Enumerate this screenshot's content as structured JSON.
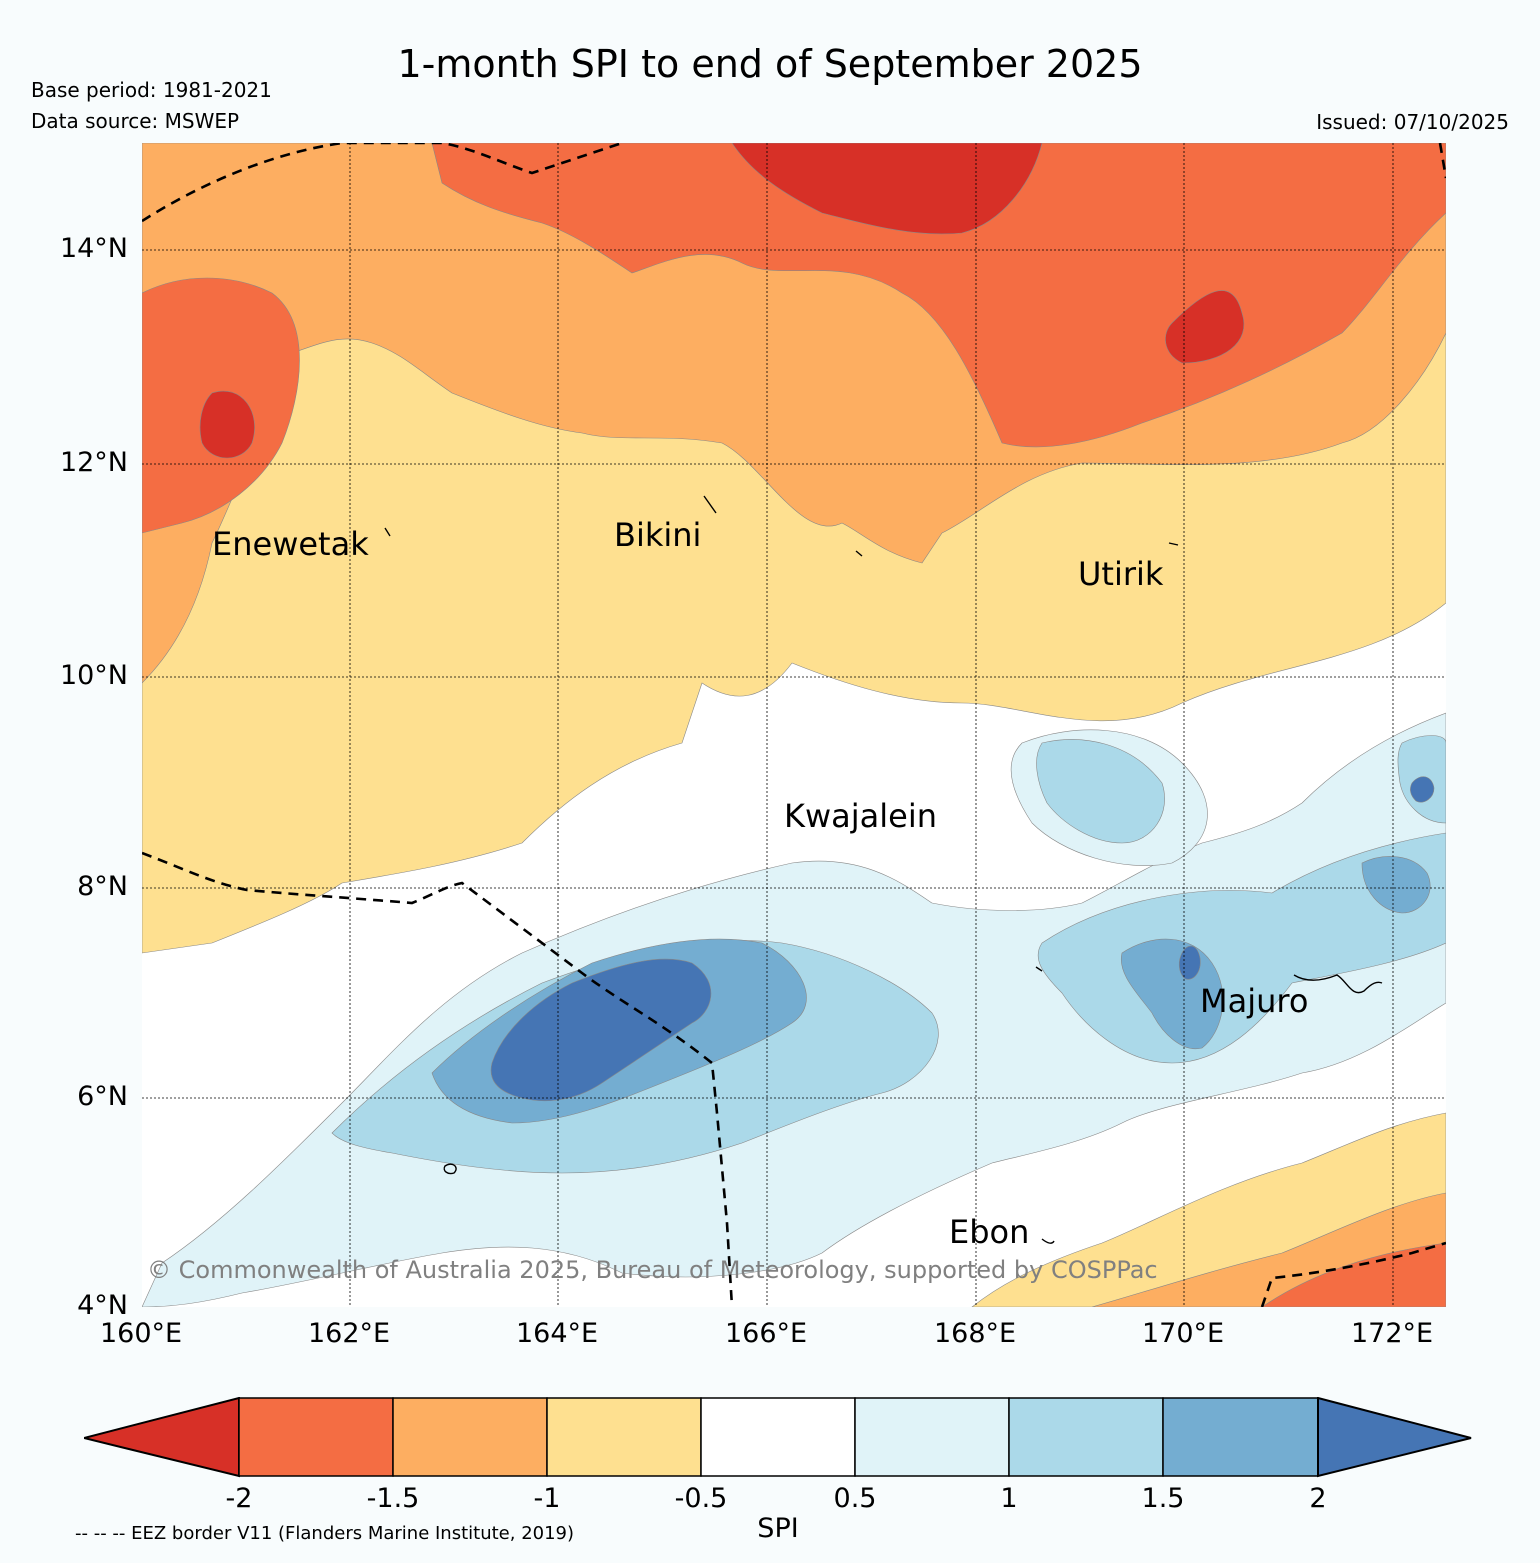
{
  "header": {
    "title": "1-month SPI to end of September 2025",
    "base_period": "Base period: 1981-2021",
    "data_source": "Data source: MSWEP",
    "issued": "Issued: 07/10/2025"
  },
  "map": {
    "lon_ticks": [
      "160°E",
      "162°E",
      "164°E",
      "166°E",
      "168°E",
      "170°E",
      "172°E"
    ],
    "lat_ticks": [
      "14°N",
      "12°N",
      "10°N",
      "8°N",
      "6°N",
      "4°N"
    ],
    "places": [
      {
        "name": "Enewetak",
        "lon": 162.0,
        "lat": 11.35
      },
      {
        "name": "Bikini",
        "lon": 164.98,
        "lat": 11.4
      },
      {
        "name": "Utirik",
        "lon": 169.85,
        "lat": 11.0
      },
      {
        "name": "Kwajalein",
        "lon": 167.73,
        "lat": 8.7
      },
      {
        "name": "Majuro",
        "lon": 171.38,
        "lat": 7.1
      },
      {
        "name": "Ebon",
        "lon": 168.7,
        "lat": 4.6
      }
    ],
    "copyright": "© Commonwealth of Australia 2025, Bureau of Meteorology, supported by COSPPac"
  },
  "colorbar": {
    "label": "SPI",
    "tick_labels": [
      "-2",
      "-1.5",
      "-1",
      "-0.5",
      "0.5",
      "1",
      "1.5",
      "2"
    ],
    "colors": [
      "#d73027",
      "#f46d43",
      "#fdae61",
      "#fee090",
      "#ffffff",
      "#e0f3f8",
      "#abd9e9",
      "#74add1",
      "#4575b4"
    ]
  },
  "footnote": "-- -- -- EEZ border V11 (Flanders Marine Institute, 2019)"
}
